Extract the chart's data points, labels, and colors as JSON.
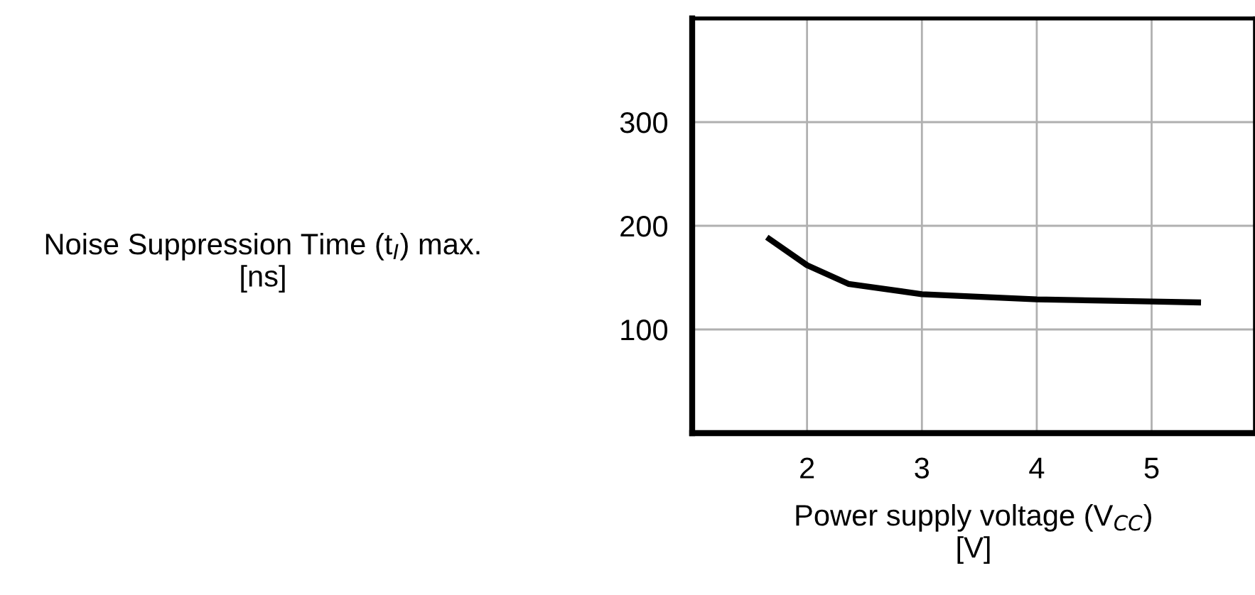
{
  "chart_data": {
    "type": "line",
    "xlabel": "Power supply voltage (V$_{CC}$)\n[V]",
    "ylabel": "Noise Suppression Time (t$_{I}$) max.\n[ns]",
    "x": [
      1.65,
      2.0,
      2.36,
      3.0,
      4.0,
      5.0,
      5.43
    ],
    "series": [
      {
        "color": "#000000",
        "values": [
          189,
          162,
          144,
          134,
          129,
          127,
          126
        ]
      }
    ],
    "xlim": [
      1,
      5.9
    ],
    "ylim": [
      0,
      400
    ],
    "xticks": [
      2,
      3,
      4,
      5
    ],
    "yticks": [
      100,
      200,
      300
    ],
    "grid": true,
    "marker": "none",
    "line_style": "solid"
  }
}
